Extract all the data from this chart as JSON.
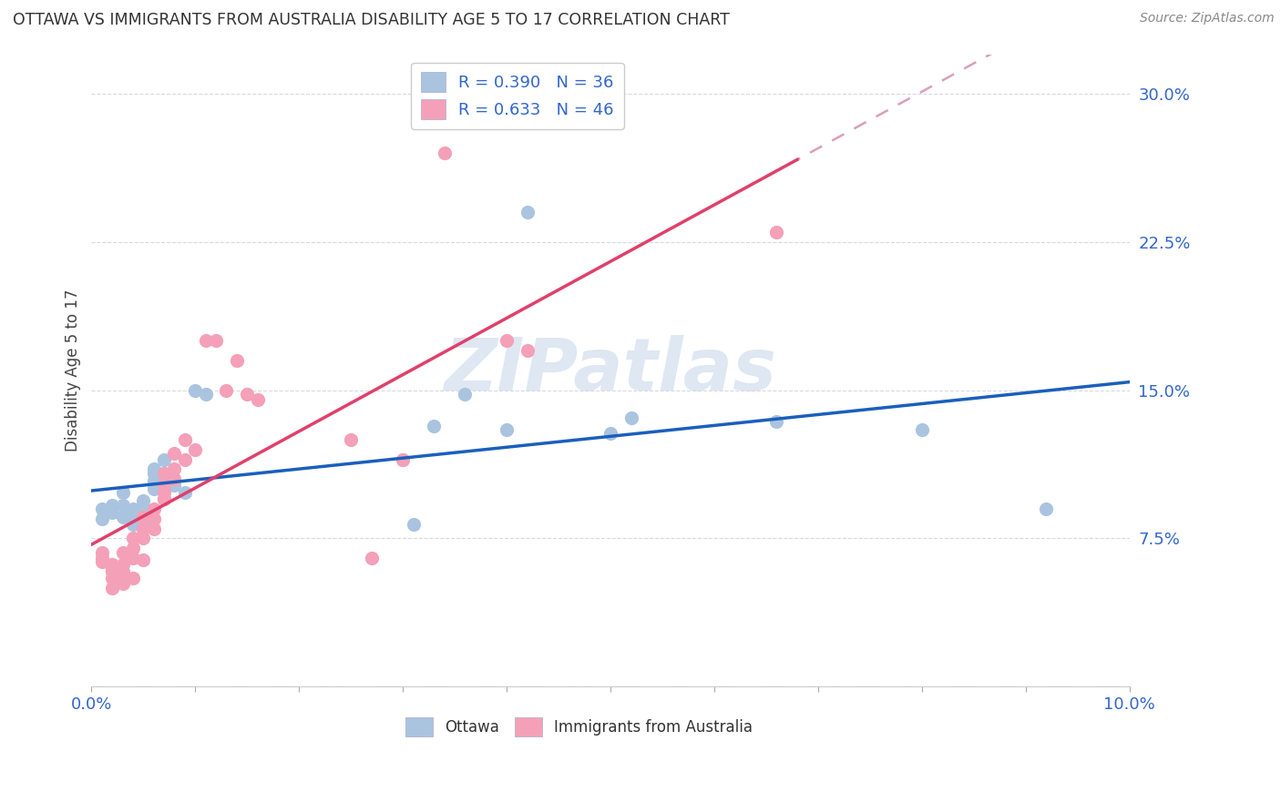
{
  "title": "OTTAWA VS IMMIGRANTS FROM AUSTRALIA DISABILITY AGE 5 TO 17 CORRELATION CHART",
  "source": "Source: ZipAtlas.com",
  "ylabel": "Disability Age 5 to 17",
  "xlim": [
    0.0,
    0.1
  ],
  "ylim": [
    0.0,
    0.32
  ],
  "ottawa_R": 0.39,
  "ottawa_N": 36,
  "immigrants_R": 0.633,
  "immigrants_N": 46,
  "ottawa_color": "#aac4e0",
  "immigrants_color": "#f4a0b8",
  "trendline_ottawa_color": "#1a5fbc",
  "trendline_immigrants_color": "#e0406a",
  "trendline_extrap_color": "#d8a0b8",
  "background_color": "#ffffff",
  "grid_color": "#d8d8e0",
  "watermark": "ZIPatlas",
  "watermark_color": "#c8d8ea",
  "ottawa_points_x": [
    0.001,
    0.001,
    0.002,
    0.002,
    0.003,
    0.003,
    0.003,
    0.004,
    0.004,
    0.004,
    0.005,
    0.005,
    0.005,
    0.005,
    0.006,
    0.006,
    0.006,
    0.006,
    0.007,
    0.007,
    0.007,
    0.008,
    0.009,
    0.01,
    0.011,
    0.03,
    0.031,
    0.033,
    0.036,
    0.04,
    0.042,
    0.05,
    0.052,
    0.066,
    0.08,
    0.092
  ],
  "ottawa_points_y": [
    0.09,
    0.085,
    0.092,
    0.088,
    0.098,
    0.092,
    0.086,
    0.09,
    0.086,
    0.082,
    0.094,
    0.09,
    0.086,
    0.082,
    0.1,
    0.11,
    0.104,
    0.108,
    0.115,
    0.095,
    0.108,
    0.102,
    0.098,
    0.15,
    0.148,
    0.115,
    0.082,
    0.132,
    0.148,
    0.13,
    0.24,
    0.128,
    0.136,
    0.134,
    0.13,
    0.09
  ],
  "immigrants_points_x": [
    0.001,
    0.001,
    0.001,
    0.002,
    0.002,
    0.002,
    0.002,
    0.002,
    0.003,
    0.003,
    0.003,
    0.003,
    0.004,
    0.004,
    0.004,
    0.004,
    0.005,
    0.005,
    0.005,
    0.005,
    0.006,
    0.006,
    0.006,
    0.007,
    0.007,
    0.007,
    0.007,
    0.008,
    0.008,
    0.008,
    0.009,
    0.009,
    0.01,
    0.011,
    0.012,
    0.013,
    0.014,
    0.015,
    0.016,
    0.025,
    0.027,
    0.03,
    0.034,
    0.04,
    0.042,
    0.066
  ],
  "immigrants_points_y": [
    0.063,
    0.065,
    0.068,
    0.06,
    0.055,
    0.058,
    0.062,
    0.05,
    0.068,
    0.062,
    0.058,
    0.052,
    0.07,
    0.075,
    0.065,
    0.055,
    0.08,
    0.075,
    0.086,
    0.064,
    0.09,
    0.085,
    0.08,
    0.098,
    0.095,
    0.102,
    0.108,
    0.11,
    0.105,
    0.118,
    0.115,
    0.125,
    0.12,
    0.175,
    0.175,
    0.15,
    0.165,
    0.148,
    0.145,
    0.125,
    0.065,
    0.115,
    0.27,
    0.175,
    0.17,
    0.23
  ]
}
